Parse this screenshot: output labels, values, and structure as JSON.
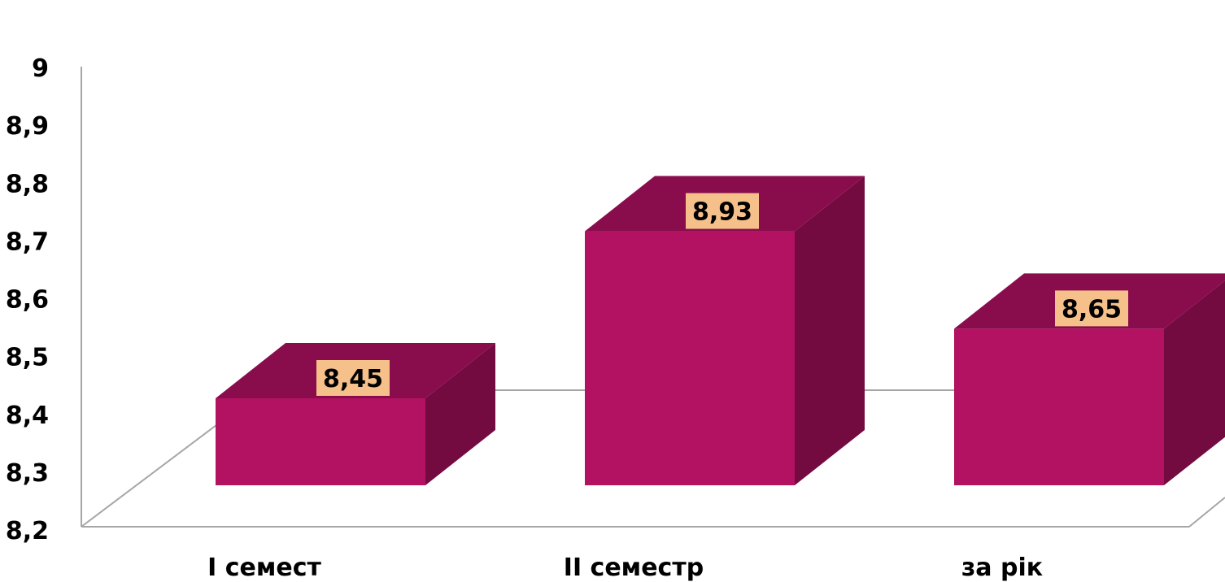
{
  "chart_data": {
    "type": "bar",
    "categories": [
      "I семест",
      "II семестр",
      "за рік"
    ],
    "values": [
      8.45,
      8.93,
      8.65
    ],
    "data_labels": [
      "8,45",
      "8,93",
      "8,65"
    ],
    "ylim": [
      8.2,
      9
    ],
    "yticks": [
      "8,2",
      "8,3",
      "8,4",
      "8,5",
      "8,6",
      "8,7",
      "8,8",
      "8,9",
      "9"
    ],
    "yticks_values": [
      8.2,
      8.3,
      8.4,
      8.5,
      8.6,
      8.7,
      8.8,
      8.9,
      9
    ],
    "bar_style": "3d",
    "grid": false,
    "legend": "none",
    "colors": {
      "bar_front": "#b31262",
      "bar_top": "#890d4c",
      "bar_side": "#740b40",
      "label_bg": "#f5c08a",
      "axis": "#a6a6a6"
    }
  }
}
